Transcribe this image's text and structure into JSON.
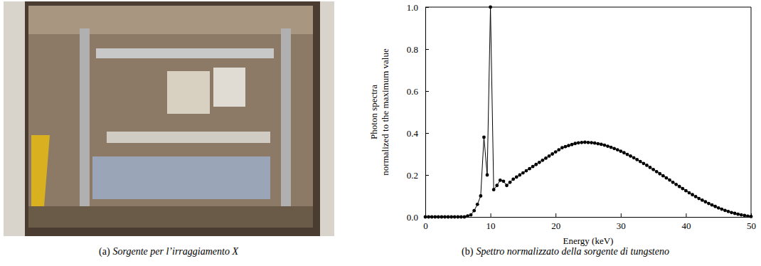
{
  "chart_data": {
    "type": "line",
    "xlabel": "Energy (keV)",
    "ylabel": [
      "Photon spectra",
      "normalized to the maximum value"
    ],
    "xlim": [
      0,
      50
    ],
    "ylim": [
      0,
      1
    ],
    "xticks": [
      0,
      10,
      20,
      30,
      40,
      50
    ],
    "yticks": [
      {
        "value": 0,
        "label": "0.0"
      },
      0.2,
      0.4,
      0.6,
      0.8,
      {
        "value": 1,
        "label": "1.0"
      }
    ],
    "color": "#000000",
    "marker": "circle",
    "line_style": "solid",
    "x": [
      0,
      0.5,
      1,
      1.5,
      2,
      2.5,
      3,
      3.5,
      4,
      4.5,
      5,
      5.5,
      6,
      6.5,
      7,
      7.5,
      8,
      8.5,
      9,
      9.5,
      10,
      10.5,
      11,
      11.5,
      12,
      12.5,
      13,
      13.5,
      14,
      14.5,
      15,
      15.5,
      16,
      16.5,
      17,
      17.5,
      18,
      18.5,
      19,
      19.5,
      20,
      20.5,
      21,
      21.5,
      22,
      22.5,
      23,
      23.5,
      24,
      24.5,
      25,
      25.5,
      26,
      26.5,
      27,
      27.5,
      28,
      28.5,
      29,
      29.5,
      30,
      30.5,
      31,
      31.5,
      32,
      32.5,
      33,
      33.5,
      34,
      34.5,
      35,
      35.5,
      36,
      36.5,
      37,
      37.5,
      38,
      38.5,
      39,
      39.5,
      40,
      40.5,
      41,
      41.5,
      42,
      42.5,
      43,
      43.5,
      44,
      44.5,
      45,
      45.5,
      46,
      46.5,
      47,
      47.5,
      48,
      48.5,
      49,
      49.5,
      50
    ],
    "values": [
      0,
      0,
      0,
      0,
      0,
      0,
      0,
      0,
      0,
      0,
      0,
      0,
      0,
      0.005,
      0.01,
      0.03,
      0.06,
      0.1,
      0.38,
      0.2,
      1,
      0.13,
      0.15,
      0.175,
      0.17,
      0.15,
      0.165,
      0.18,
      0.19,
      0.2,
      0.21,
      0.22,
      0.23,
      0.24,
      0.25,
      0.26,
      0.27,
      0.28,
      0.29,
      0.3,
      0.31,
      0.32,
      0.33,
      0.335,
      0.34,
      0.345,
      0.35,
      0.353,
      0.355,
      0.356,
      0.355,
      0.354,
      0.352,
      0.349,
      0.346,
      0.342,
      0.337,
      0.332,
      0.326,
      0.32,
      0.313,
      0.306,
      0.298,
      0.29,
      0.282,
      0.273,
      0.264,
      0.255,
      0.246,
      0.236,
      0.226,
      0.216,
      0.206,
      0.196,
      0.186,
      0.176,
      0.165,
      0.155,
      0.145,
      0.135,
      0.125,
      0.115,
      0.106,
      0.097,
      0.088,
      0.08,
      0.072,
      0.064,
      0.057,
      0.05,
      0.043,
      0.037,
      0.031,
      0.026,
      0.021,
      0.017,
      0.013,
      0.01,
      0.007,
      0.004,
      0.002
    ]
  },
  "captions": [
    {
      "label": "(a)",
      "text": "Sorgente per l’irraggiamento X"
    },
    {
      "label": "(b)",
      "text": "Spettro normalizzato della sorgente di tungsteno"
    }
  ]
}
